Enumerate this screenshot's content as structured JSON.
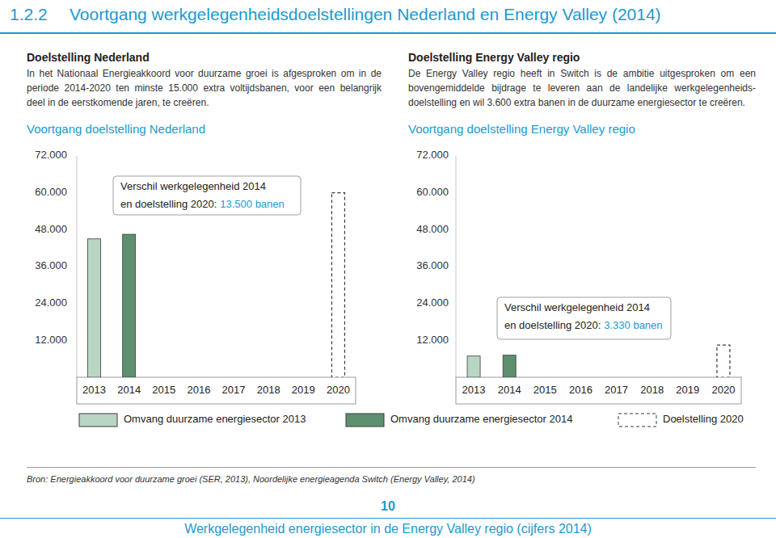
{
  "page": {
    "section": "1.2.2",
    "title": "Voortgang werkgelegenheidsdoelstellingen Nederland en Energy Valley (2014)",
    "columns": [
      {
        "heading": "Doelstelling Nederland",
        "paragraph": [
          "In het Nationaal Energieakkoord voor duurzame groei is afgesproken om in de",
          "periode 2014-2020 ten minste 15.000 extra voltijdsbanen, voor een belangrijk",
          "deel in de eerstkomende jaren, te creëren."
        ],
        "subheading": "Voortgang doelstelling Nederland"
      },
      {
        "heading": "Doelstelling Energy Valley regio",
        "paragraph": [
          "De Energy Valley regio heeft in Switch is de ambitie uitgesproken om een",
          "bovengemiddelde bijdrage te leveren aan de landelijke werkgelegenheids-",
          "doelstelling en wil 3.600 extra banen in de duurzame energiesector te creëren."
        ],
        "subheading": "Voortgang doelstelling Energy Valley regio"
      }
    ],
    "source": "Bron: Energieakkoord voor duurzame groei (SER, 2013), Noordelijke energieagenda Switch (Energy Valley, 2014)",
    "page_number": 10,
    "footer": "Werkgelegenheid energiesector in de Energy Valley regio (cijfers 2014)"
  },
  "chart_data": [
    {
      "type": "bar",
      "categories": [
        "2013",
        "2014",
        "2015",
        "2016",
        "2017",
        "2018",
        "2019",
        "2020"
      ],
      "series": [
        {
          "name": "Omvang duurzame energiesector 2013",
          "color": "#b9d6c5",
          "line_style": "solid",
          "values": [
            45000,
            null,
            null,
            null,
            null,
            null,
            null,
            null
          ]
        },
        {
          "name": "Omvang duurzame energiesector 2014",
          "color": "#5e8f6e",
          "line_style": "solid",
          "values": [
            null,
            46500,
            null,
            null,
            null,
            null,
            null,
            null
          ]
        },
        {
          "name": "Doelstelling 2020",
          "color": "#ffffff",
          "line_style": "dashed",
          "values": [
            null,
            null,
            null,
            null,
            null,
            null,
            null,
            60000
          ]
        }
      ],
      "ylim": [
        0,
        72000
      ],
      "yticks": [
        {
          "value": 12000,
          "label": "12.000"
        },
        {
          "value": 24000,
          "label": "24.000"
        },
        {
          "value": 36000,
          "label": "36.000"
        },
        {
          "value": 48000,
          "label": "48.000"
        },
        {
          "value": 60000,
          "label": "60.000"
        },
        {
          "value": 72000,
          "label": "72.000"
        }
      ],
      "grid": false,
      "tick_labels": true,
      "annotations": [
        "Verschil werkgelegenheid 2014",
        "en doelstelling 2020:",
        "13.500 banen"
      ]
    },
    {
      "type": "bar",
      "categories": [
        "2013",
        "2014",
        "2015",
        "2016",
        "2017",
        "2018",
        "2019",
        "2020"
      ],
      "series": [
        {
          "color": "#b9d6c5",
          "line_style": "solid",
          "values": [
            6900,
            null,
            null,
            null,
            null,
            null,
            null,
            null
          ]
        },
        {
          "color": "#5e8f6e",
          "line_style": "solid",
          "values": [
            null,
            7170,
            null,
            null,
            null,
            null,
            null,
            null
          ]
        },
        {
          "color": "#ffffff",
          "line_style": "dashed",
          "values": [
            null,
            null,
            null,
            null,
            null,
            null,
            null,
            10500
          ]
        }
      ],
      "ylim": [
        0,
        72000
      ],
      "yticks": [
        {
          "value": 12000,
          "label": "12.000"
        },
        {
          "value": 24000,
          "label": "24.000"
        },
        {
          "value": 36000,
          "label": "36.000"
        },
        {
          "value": 48000,
          "label": "48.000"
        },
        {
          "value": 60000,
          "label": "60.000"
        },
        {
          "value": 72000,
          "label": "72.000"
        }
      ],
      "grid": false,
      "tick_labels": true,
      "annotations": [
        "Verschil werkgelegenheid 2014",
        "en doelstelling 2020:",
        "3.330 banen"
      ]
    }
  ]
}
